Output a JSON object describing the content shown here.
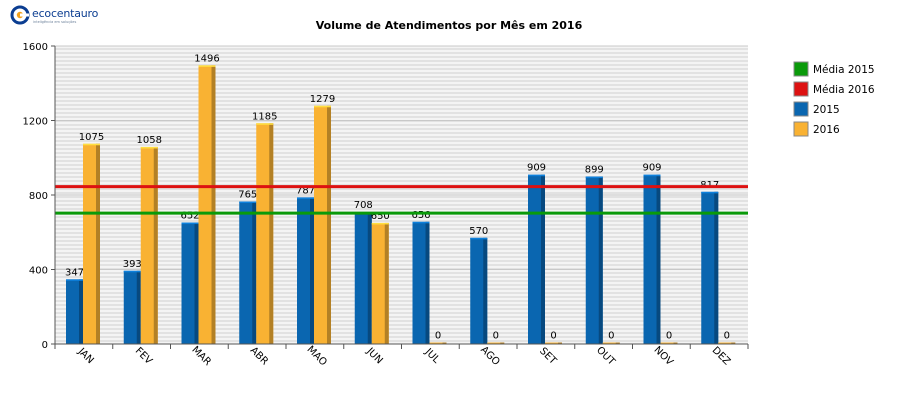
{
  "logo": {
    "text": "ecocentauro",
    "tagline": "inteligência em soluções"
  },
  "chart_data": {
    "type": "bar",
    "title": "Volume de Atendimentos por Mês em 2016",
    "xlabel": "",
    "ylabel": "",
    "ylim": [
      0,
      1600
    ],
    "yticks": [
      0,
      400,
      800,
      1200,
      1600
    ],
    "grid": true,
    "legend_position": "right",
    "categories": [
      "JAN",
      "FEV",
      "MAR",
      "ABR",
      "MAO",
      "JUN",
      "JUL",
      "AGO",
      "SET",
      "OUT",
      "NOV",
      "DEZ"
    ],
    "series": [
      {
        "name": "2015",
        "color": "#0a66b0",
        "values": [
          347,
          393,
          652,
          765,
          787,
          708,
          656,
          570,
          909,
          899,
          909,
          817
        ]
      },
      {
        "name": "2016",
        "color": "#f9b233",
        "values": [
          1075,
          1058,
          1496,
          1185,
          1279,
          650,
          0,
          0,
          0,
          0,
          0,
          0
        ]
      }
    ],
    "reference_lines": [
      {
        "name": "Média 2015",
        "color": "#0a9a0a",
        "value": 703
      },
      {
        "name": "Média 2016",
        "color": "#dd1111",
        "value": 845
      }
    ],
    "legend": [
      {
        "name": "Média 2015",
        "color": "#0a9a0a"
      },
      {
        "name": "Média 2016",
        "color": "#dd1111"
      },
      {
        "name": "2015",
        "color": "#0a66b0"
      },
      {
        "name": "2016",
        "color": "#f9b233"
      }
    ]
  }
}
